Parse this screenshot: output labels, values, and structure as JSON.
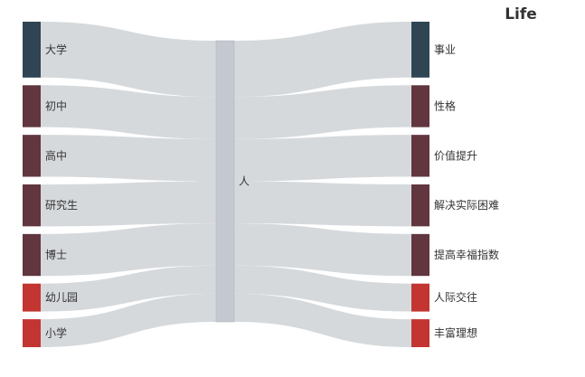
{
  "chart_data": {
    "type": "sankey",
    "title": "Life",
    "left_nodes": [
      {
        "name": "大学",
        "value": 6,
        "color": "#2f4554"
      },
      {
        "name": "初中",
        "value": 4.5,
        "color": "#61363f"
      },
      {
        "name": "高中",
        "value": 4.5,
        "color": "#61363f"
      },
      {
        "name": "研究生",
        "value": 4.5,
        "color": "#61363f"
      },
      {
        "name": "博士",
        "value": 4.5,
        "color": "#61363f"
      },
      {
        "name": "幼儿园",
        "value": 3,
        "color": "#c23531"
      },
      {
        "name": "小学",
        "value": 3,
        "color": "#c23531"
      }
    ],
    "center_node": {
      "name": "人",
      "color": "#c4c9d1"
    },
    "right_nodes": [
      {
        "name": "事业",
        "value": 6,
        "color": "#2f4554"
      },
      {
        "name": "性格",
        "value": 4.5,
        "color": "#61363f"
      },
      {
        "name": "价值提升",
        "value": 4.5,
        "color": "#61363f"
      },
      {
        "name": "解决实际困难",
        "value": 4.5,
        "color": "#61363f"
      },
      {
        "name": "提高幸福指数",
        "value": 4.5,
        "color": "#61363f"
      },
      {
        "name": "人际交往",
        "value": 3,
        "color": "#c23531"
      },
      {
        "name": "丰富理想",
        "value": 3,
        "color": "#c23531"
      }
    ],
    "link_color": "#d6d9dc"
  }
}
